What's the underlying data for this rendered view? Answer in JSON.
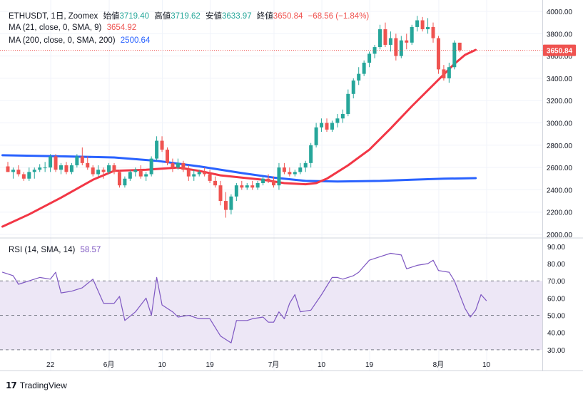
{
  "header": {
    "symbol": "ETHUSDT, 1日, Zoomex",
    "open_label": "始値",
    "open": "3719.40",
    "high_label": "高値",
    "high": "3719.62",
    "low_label": "安値",
    "low": "3633.97",
    "close_label": "終値",
    "close": "3650.84",
    "change": "−68.56 (−1.84%)"
  },
  "ma21": {
    "label": "MA (21, close, 0, SMA, 9)",
    "value": "3654.92",
    "color": "#f23645"
  },
  "ma200": {
    "label": "MA (200, close, 0, SMA, 200)",
    "value": "2500.64",
    "color": "#2962ff"
  },
  "rsi": {
    "label": "RSI (14, SMA, 14)",
    "value": "58.57",
    "color": "#7e57c2"
  },
  "price_tag": "3650.84",
  "footer": {
    "brand": "TradingView"
  },
  "colors": {
    "up": "#26a69a",
    "down": "#ef5350",
    "band": "#ede7f6"
  },
  "chart_data": {
    "type": "candlestick",
    "price_axis": {
      "ticks": [
        "4000.00",
        "3800.00",
        "3600.00",
        "3400.00",
        "3200.00",
        "3000.00",
        "2800.00",
        "2600.00",
        "2400.00",
        "2200.00",
        "2000.00"
      ],
      "ylim": [
        2000,
        4000
      ]
    },
    "rsi_axis": {
      "ticks": [
        "90.00",
        "80.00",
        "70.00",
        "60.00",
        "50.00",
        "40.00",
        "30.00"
      ],
      "ylim": [
        25,
        92
      ],
      "band": [
        30,
        70
      ],
      "midline": 50
    },
    "x_ticks": [
      {
        "label": "22",
        "i": 8
      },
      {
        "label": "6月",
        "i": 19
      },
      {
        "label": "10",
        "i": 29
      },
      {
        "label": "19",
        "i": 38
      },
      {
        "label": "7月",
        "i": 50
      },
      {
        "label": "10",
        "i": 59
      },
      {
        "label": "19",
        "i": 68
      },
      {
        "label": "8月",
        "i": 81
      },
      {
        "label": "10",
        "i": 90
      }
    ],
    "candles": [
      [
        2610,
        2650,
        2560,
        2560
      ],
      [
        2560,
        2600,
        2500,
        2580
      ],
      [
        2580,
        2620,
        2520,
        2540
      ],
      [
        2540,
        2560,
        2480,
        2500
      ],
      [
        2500,
        2600,
        2480,
        2560
      ],
      [
        2560,
        2600,
        2500,
        2580
      ],
      [
        2580,
        2630,
        2560,
        2600
      ],
      [
        2600,
        2650,
        2560,
        2600
      ],
      [
        2600,
        2720,
        2560,
        2700
      ],
      [
        2700,
        2720,
        2560,
        2580
      ],
      [
        2580,
        2640,
        2540,
        2620
      ],
      [
        2620,
        2650,
        2540,
        2560
      ],
      [
        2560,
        2640,
        2540,
        2620
      ],
      [
        2620,
        2720,
        2600,
        2700
      ],
      [
        2700,
        2780,
        2620,
        2640
      ],
      [
        2640,
        2700,
        2580,
        2600
      ],
      [
        2600,
        2620,
        2520,
        2540
      ],
      [
        2540,
        2620,
        2520,
        2580
      ],
      [
        2580,
        2600,
        2500,
        2560
      ],
      [
        2560,
        2640,
        2540,
        2620
      ],
      [
        2620,
        2640,
        2540,
        2560
      ],
      [
        2560,
        2580,
        2420,
        2440
      ],
      [
        2440,
        2520,
        2420,
        2500
      ],
      [
        2500,
        2580,
        2480,
        2560
      ],
      [
        2560,
        2600,
        2520,
        2580
      ],
      [
        2580,
        2620,
        2500,
        2520
      ],
      [
        2520,
        2560,
        2480,
        2540
      ],
      [
        2540,
        2700,
        2520,
        2680
      ],
      [
        2680,
        2880,
        2660,
        2840
      ],
      [
        2840,
        2880,
        2740,
        2760
      ],
      [
        2760,
        2780,
        2620,
        2640
      ],
      [
        2640,
        2680,
        2560,
        2600
      ],
      [
        2600,
        2680,
        2580,
        2640
      ],
      [
        2640,
        2660,
        2560,
        2580
      ],
      [
        2580,
        2620,
        2480,
        2520
      ],
      [
        2520,
        2580,
        2480,
        2540
      ],
      [
        2540,
        2580,
        2520,
        2560
      ],
      [
        2560,
        2600,
        2520,
        2540
      ],
      [
        2540,
        2580,
        2460,
        2480
      ],
      [
        2480,
        2520,
        2420,
        2440
      ],
      [
        2440,
        2480,
        2260,
        2300
      ],
      [
        2300,
        2380,
        2150,
        2220
      ],
      [
        2220,
        2360,
        2180,
        2340
      ],
      [
        2340,
        2460,
        2300,
        2440
      ],
      [
        2440,
        2480,
        2400,
        2420
      ],
      [
        2420,
        2460,
        2400,
        2440
      ],
      [
        2440,
        2480,
        2400,
        2420
      ],
      [
        2420,
        2480,
        2400,
        2460
      ],
      [
        2460,
        2520,
        2440,
        2500
      ],
      [
        2500,
        2540,
        2460,
        2480
      ],
      [
        2480,
        2520,
        2420,
        2440
      ],
      [
        2440,
        2640,
        2400,
        2600
      ],
      [
        2600,
        2640,
        2540,
        2560
      ],
      [
        2560,
        2600,
        2520,
        2540
      ],
      [
        2540,
        2580,
        2520,
        2560
      ],
      [
        2560,
        2640,
        2540,
        2600
      ],
      [
        2600,
        2660,
        2560,
        2640
      ],
      [
        2640,
        2820,
        2600,
        2800
      ],
      [
        2800,
        3000,
        2780,
        2960
      ],
      [
        2960,
        3040,
        2920,
        3000
      ],
      [
        3000,
        3040,
        2920,
        2940
      ],
      [
        2940,
        3020,
        2920,
        3000
      ],
      [
        3000,
        3080,
        2960,
        3040
      ],
      [
        3040,
        3120,
        3000,
        3080
      ],
      [
        3080,
        3300,
        3060,
        3260
      ],
      [
        3260,
        3400,
        3220,
        3380
      ],
      [
        3380,
        3500,
        3340,
        3440
      ],
      [
        3440,
        3560,
        3420,
        3540
      ],
      [
        3540,
        3640,
        3500,
        3620
      ],
      [
        3620,
        3700,
        3580,
        3680
      ],
      [
        3680,
        3880,
        3660,
        3840
      ],
      [
        3840,
        3900,
        3680,
        3700
      ],
      [
        3700,
        3820,
        3640,
        3760
      ],
      [
        3760,
        3800,
        3560,
        3600
      ],
      [
        3600,
        3780,
        3580,
        3740
      ],
      [
        3740,
        3800,
        3660,
        3720
      ],
      [
        3720,
        3880,
        3700,
        3860
      ],
      [
        3860,
        3960,
        3820,
        3920
      ],
      [
        3920,
        3950,
        3820,
        3840
      ],
      [
        3840,
        3940,
        3800,
        3860
      ],
      [
        3860,
        3900,
        3720,
        3760
      ],
      [
        3760,
        3780,
        3440,
        3480
      ],
      [
        3480,
        3520,
        3380,
        3400
      ],
      [
        3400,
        3540,
        3360,
        3500
      ],
      [
        3500,
        3740,
        3480,
        3720
      ],
      [
        3719.4,
        3719.62,
        3633.97,
        3650.84
      ]
    ],
    "ma21_points": [
      [
        -1,
        2070
      ],
      [
        4,
        2180
      ],
      [
        10,
        2330
      ],
      [
        16,
        2490
      ],
      [
        20,
        2570
      ],
      [
        26,
        2580
      ],
      [
        32,
        2600
      ],
      [
        36,
        2570
      ],
      [
        40,
        2530
      ],
      [
        44,
        2510
      ],
      [
        48,
        2490
      ],
      [
        52,
        2460
      ],
      [
        56,
        2450
      ],
      [
        58,
        2460
      ],
      [
        60,
        2500
      ],
      [
        64,
        2620
      ],
      [
        68,
        2760
      ],
      [
        72,
        2950
      ],
      [
        76,
        3150
      ],
      [
        80,
        3340
      ],
      [
        84,
        3530
      ],
      [
        86,
        3610
      ],
      [
        88,
        3654.92
      ]
    ],
    "ma200_points": [
      [
        -1,
        2710
      ],
      [
        10,
        2700
      ],
      [
        20,
        2690
      ],
      [
        28,
        2660
      ],
      [
        36,
        2610
      ],
      [
        44,
        2550
      ],
      [
        50,
        2510
      ],
      [
        56,
        2480
      ],
      [
        62,
        2475
      ],
      [
        70,
        2480
      ],
      [
        76,
        2490
      ],
      [
        82,
        2500
      ],
      [
        88,
        2505
      ]
    ],
    "rsi_points": [
      [
        -1,
        75
      ],
      [
        1,
        73
      ],
      [
        2,
        68
      ],
      [
        4,
        70
      ],
      [
        6,
        72
      ],
      [
        8,
        71
      ],
      [
        9,
        75
      ],
      [
        10,
        63
      ],
      [
        12,
        64
      ],
      [
        14,
        66
      ],
      [
        16,
        71
      ],
      [
        18,
        57
      ],
      [
        20,
        57
      ],
      [
        21,
        61
      ],
      [
        22,
        47
      ],
      [
        24,
        52
      ],
      [
        26,
        60
      ],
      [
        27,
        50
      ],
      [
        28,
        72
      ],
      [
        29,
        56
      ],
      [
        31,
        52
      ],
      [
        32,
        49
      ],
      [
        34,
        50
      ],
      [
        36,
        48
      ],
      [
        38,
        48
      ],
      [
        40,
        38
      ],
      [
        42,
        34
      ],
      [
        43,
        47
      ],
      [
        45,
        47
      ],
      [
        46,
        48
      ],
      [
        48,
        49
      ],
      [
        49,
        46
      ],
      [
        50,
        46
      ],
      [
        51,
        52
      ],
      [
        52,
        48
      ],
      [
        53,
        57
      ],
      [
        54,
        62
      ],
      [
        55,
        52
      ],
      [
        57,
        53
      ],
      [
        59,
        62
      ],
      [
        61,
        72
      ],
      [
        62,
        72
      ],
      [
        63,
        71
      ],
      [
        65,
        73
      ],
      [
        66,
        75
      ],
      [
        68,
        82
      ],
      [
        70,
        84
      ],
      [
        72,
        86
      ],
      [
        74,
        85
      ],
      [
        75,
        77
      ],
      [
        77,
        79
      ],
      [
        79,
        80
      ],
      [
        80,
        82
      ],
      [
        81,
        76
      ],
      [
        83,
        75
      ],
      [
        84,
        70
      ],
      [
        86,
        54
      ],
      [
        87,
        49
      ],
      [
        88,
        53
      ],
      [
        89,
        62
      ],
      [
        90,
        58.57
      ]
    ]
  }
}
